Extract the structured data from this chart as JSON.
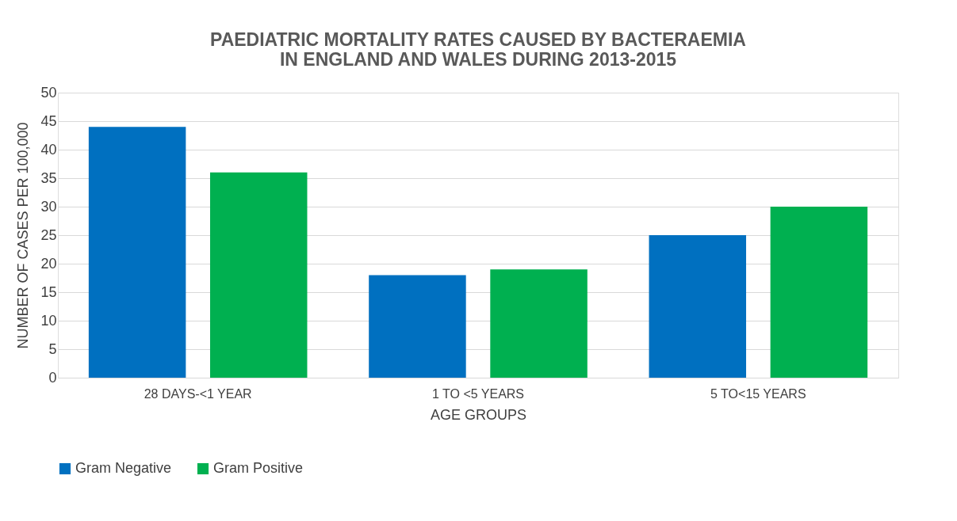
{
  "chart_data": {
    "type": "bar",
    "title": "PAEDIATRIC MORTALITY RATES CAUSED BY BACTERAEMIA IN ENGLAND AND WALES DURING 2013-2015",
    "xlabel": "AGE GROUPS",
    "ylabel": "NUMBER OF CASES PER 100,000",
    "categories": [
      "28 DAYS-<1 YEAR",
      "1 TO <5 YEARS",
      "5 TO<15 YEARS"
    ],
    "series": [
      {
        "name": "Gram Negative",
        "color": "#0070c0",
        "values": [
          44,
          18,
          25
        ]
      },
      {
        "name": "Gram Positive",
        "color": "#00b050",
        "values": [
          36,
          19,
          30
        ]
      }
    ],
    "ylim": [
      0,
      50
    ],
    "yticks": [
      0,
      5,
      10,
      15,
      20,
      25,
      30,
      35,
      40,
      45,
      50
    ],
    "grid": "y",
    "legend": "bottom"
  }
}
